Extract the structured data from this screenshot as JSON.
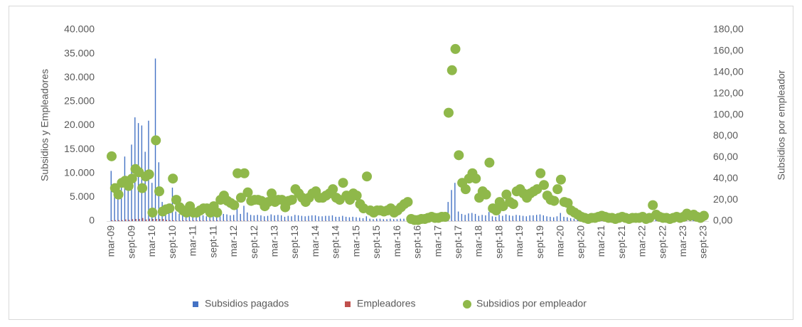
{
  "chart_data": {
    "type": "bar",
    "y_label": "Subsidios y Empleadores",
    "y2_label": "Subsidios por empleador",
    "ylim": [
      0,
      40000
    ],
    "yticks": [
      0,
      {
        "value": 5000,
        "label": "5.000"
      },
      {
        "value": 10000,
        "label": "10.000"
      },
      {
        "value": 15000,
        "label": "15.000"
      },
      {
        "value": 20000,
        "label": "20.000"
      },
      {
        "value": 25000,
        "label": "25.000"
      },
      {
        "value": 30000,
        "label": "30.000"
      },
      {
        "value": 35000,
        "label": "35.000"
      },
      {
        "value": 40000,
        "label": "40.000"
      }
    ],
    "y2lim": [
      0,
      180
    ],
    "y2ticks": [
      {
        "value": 0,
        "label": "0,00"
      },
      {
        "value": 20,
        "label": "20,00"
      },
      {
        "value": 40,
        "label": "40,00"
      },
      {
        "value": 60,
        "label": "60,00"
      },
      {
        "value": 80,
        "label": "80,00"
      },
      {
        "value": 100,
        "label": "100,00"
      },
      {
        "value": 120,
        "label": "120,00"
      },
      {
        "value": 140,
        "label": "140,00"
      },
      {
        "value": 160,
        "label": "160,00"
      },
      {
        "value": 180,
        "label": "180,00"
      }
    ],
    "grid": false,
    "legend": "bottom",
    "categories": [
      "mar-09",
      null,
      null,
      null,
      null,
      null,
      "sept-09",
      null,
      null,
      null,
      null,
      null,
      "mar-10",
      null,
      null,
      null,
      null,
      null,
      "sept-10",
      null,
      null,
      null,
      null,
      null,
      "mar-11",
      null,
      null,
      null,
      null,
      null,
      "sept-11",
      null,
      null,
      null,
      null,
      null,
      "mar-12",
      null,
      null,
      null,
      null,
      null,
      "sept-12",
      null,
      null,
      null,
      null,
      null,
      "mar-13",
      null,
      null,
      null,
      null,
      null,
      "sept-13",
      null,
      null,
      null,
      null,
      null,
      "mar-14",
      null,
      null,
      null,
      null,
      null,
      "sept-14",
      null,
      null,
      null,
      null,
      null,
      "mar-15",
      null,
      null,
      null,
      null,
      null,
      "sept-15",
      null,
      null,
      null,
      null,
      null,
      "mar-16",
      null,
      null,
      null,
      null,
      null,
      "sept-16",
      null,
      null,
      null,
      null,
      null,
      "mar-17",
      null,
      null,
      null,
      null,
      null,
      "sept-17",
      null,
      null,
      null,
      null,
      null,
      "mar-18",
      null,
      null,
      null,
      null,
      null,
      "sept-18",
      null,
      null,
      null,
      null,
      null,
      "mar-19",
      null,
      null,
      null,
      null,
      null,
      "sept-19",
      null,
      null,
      null,
      null,
      null,
      "mar-20",
      null,
      null,
      null,
      null,
      null,
      "sept-20",
      null,
      null,
      null,
      null,
      null,
      "mar-21",
      null,
      null,
      null,
      null,
      null,
      "sept-21",
      null,
      null,
      null,
      null,
      null,
      "mar-22",
      null,
      null,
      null,
      null,
      null,
      "sept-22",
      null,
      null,
      null,
      null,
      null,
      "mar-23",
      null,
      null,
      null,
      null,
      null,
      "sept-23"
    ],
    "series": [
      {
        "name": "Subsidios pagados",
        "type": "bar",
        "color": "#4472c4",
        "values": [
          10500,
          6000,
          5000,
          7000,
          13500,
          9000,
          16000,
          21700,
          20500,
          20000,
          14500,
          21000,
          8000,
          34000,
          12300,
          4000,
          3000,
          2500,
          7000,
          2000,
          1500,
          1200,
          1000,
          1300,
          1000,
          900,
          1100,
          1200,
          1000,
          900,
          1200,
          1000,
          1300,
          1500,
          1400,
          1200,
          1300,
          3000,
          1500,
          3200,
          1800,
          1300,
          1200,
          1300,
          1200,
          1000,
          1100,
          1400,
          1200,
          1300,
          1200,
          900,
          1100,
          1000,
          1300,
          1200,
          1100,
          1000,
          1100,
          1200,
          1200,
          1000,
          1000,
          1100,
          1100,
          1200,
          900,
          900,
          1100,
          900,
          800,
          900,
          800,
          700,
          600,
          1000,
          500,
          400,
          500,
          500,
          400,
          400,
          500,
          400,
          400,
          500,
          500,
          600,
          200,
          150,
          150,
          200,
          200,
          250,
          300,
          250,
          300,
          400,
          400,
          4000,
          6500,
          8000,
          2000,
          1500,
          1300,
          1600,
          1700,
          1500,
          1100,
          1300,
          1200,
          1900,
          1000,
          900,
          1300,
          1100,
          1400,
          1200,
          1100,
          1300,
          1200,
          1100,
          1000,
          1200,
          1200,
          1300,
          1400,
          1200,
          1000,
          900,
          800,
          1000,
          1700,
          900,
          800,
          600,
          500,
          400,
          300,
          250,
          200,
          250,
          250,
          300,
          350,
          300,
          250,
          250,
          200,
          250,
          300,
          250,
          200,
          250,
          250,
          250,
          300,
          200,
          250,
          600,
          400,
          300,
          250,
          250,
          200,
          250,
          300,
          250,
          300,
          450,
          350,
          400,
          300,
          250,
          350
        ]
      },
      {
        "name": "Empleadores",
        "type": "bar",
        "color": "#c0504d",
        "values": [
          172,
          194,
          200,
          194,
          355,
          273,
          400,
          443,
          446,
          645,
          345,
          477,
          450,
          447,
          439,
          444,
          273,
          208,
          175,
          100,
          115,
          120,
          125,
          93,
          125,
          112,
          110,
          100,
          83,
          112,
          86,
          125,
          65,
          63,
          74,
          71,
          87,
          67,
          68,
          71,
          67,
          68,
          60,
          65,
          63,
          71,
          61,
          54,
          67,
          65,
          60,
          69,
          58,
          50,
          43,
          46,
          50,
          56,
          50,
          46,
          43,
          45,
          45,
          46,
          42,
          40,
          41,
          45,
          31,
          38,
          40,
          35,
          33,
          44,
          50,
          24,
          50,
          50,
          50,
          50,
          44,
          40,
          42,
          50,
          40,
          38,
          31,
          33,
          100,
          150,
          150,
          100,
          100,
          83,
          75,
          83,
          100,
          100,
          100,
          39,
          46,
          49,
          32,
          42,
          43,
          40,
          38,
          38,
          50,
          46,
          48,
          35,
          83,
          90,
          72,
          79,
          56,
          67,
          69,
          46,
          40,
          42,
          45,
          46,
          43,
          43,
          31,
          35,
          42,
          45,
          42,
          33,
          44,
          50,
          47,
          60,
          62,
          67,
          75,
          83,
          100,
          83,
          83,
          75,
          70,
          75,
          83,
          83,
          100,
          83,
          75,
          83,
          100,
          83,
          83,
          83,
          75,
          100,
          83,
          40,
          67,
          75,
          83,
          83,
          100,
          83,
          75,
          83,
          75,
          64,
          70,
          67,
          75,
          83,
          70
        ]
      },
      {
        "name": "Subsidios por empleador",
        "type": "scatter",
        "axis": "y2",
        "color": "#8fb84a",
        "values": [
          61,
          31,
          25,
          36,
          38,
          33,
          40,
          49,
          46,
          31,
          42,
          44,
          8,
          76,
          28,
          9,
          11,
          12,
          40,
          20,
          13,
          10,
          8,
          14,
          8,
          8,
          10,
          12,
          12,
          8,
          14,
          8,
          20,
          24,
          19,
          17,
          15,
          45,
          22,
          45,
          27,
          19,
          20,
          20,
          19,
          14,
          18,
          26,
          18,
          20,
          20,
          13,
          19,
          20,
          30,
          26,
          22,
          18,
          22,
          26,
          28,
          22,
          22,
          24,
          26,
          30,
          22,
          20,
          36,
          24,
          20,
          26,
          24,
          16,
          12,
          42,
          10,
          8,
          10,
          10,
          9,
          10,
          12,
          8,
          10,
          13,
          16,
          18,
          2,
          1,
          1,
          2,
          2,
          3,
          4,
          3,
          3,
          4,
          4,
          102,
          142,
          162,
          62,
          36,
          30,
          40,
          45,
          40,
          22,
          28,
          25,
          55,
          12,
          10,
          18,
          14,
          25,
          18,
          16,
          28,
          30,
          26,
          22,
          26,
          28,
          30,
          45,
          34,
          24,
          20,
          19,
          30,
          39,
          18,
          17,
          10,
          8,
          6,
          4,
          3,
          2,
          3,
          3,
          4,
          5,
          4,
          3,
          3,
          2,
          3,
          4,
          3,
          2,
          3,
          3,
          3,
          4,
          2,
          3,
          15,
          6,
          4,
          3,
          3,
          2,
          3,
          4,
          3,
          4,
          7,
          5,
          6,
          4,
          3,
          5
        ]
      }
    ]
  }
}
